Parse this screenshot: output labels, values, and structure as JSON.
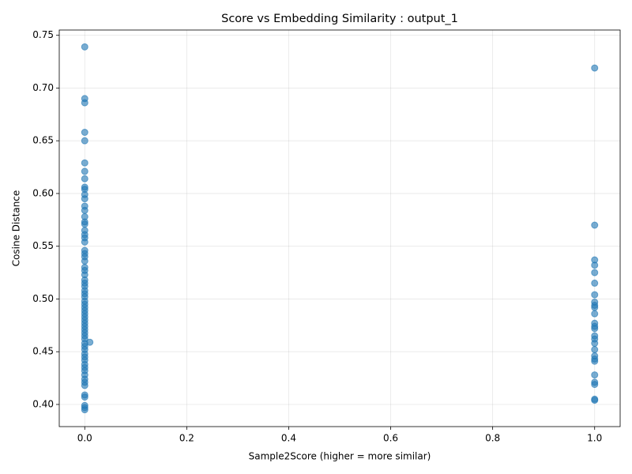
{
  "chart_data": {
    "type": "scatter",
    "title": "Score vs Embedding Similarity : output_1",
    "x_label": "Sample2Score (higher = more similar)",
    "y_label": "Cosine Distance",
    "color": "#1f77b4",
    "grid": true,
    "x": [
      0,
      0,
      0,
      0,
      0,
      0,
      0,
      0,
      0,
      0,
      0,
      0,
      0,
      0,
      0,
      0,
      0,
      0,
      0,
      0,
      0,
      0,
      0,
      0,
      0,
      0,
      0,
      0,
      0,
      0,
      0,
      0,
      0,
      0,
      0,
      0,
      0,
      0,
      0,
      0,
      0,
      0,
      0,
      0,
      0,
      0,
      0,
      0,
      0,
      0,
      0,
      0,
      0,
      0,
      0,
      0,
      0,
      0,
      0,
      0,
      0,
      0,
      0,
      0,
      0,
      0.01,
      1,
      1,
      1,
      1,
      1,
      1,
      1,
      1,
      1,
      1,
      1,
      1,
      1,
      1,
      1,
      1,
      1,
      1,
      1,
      1,
      1,
      1,
      1,
      1,
      1,
      1
    ],
    "values": [
      0.739,
      0.69,
      0.686,
      0.658,
      0.65,
      0.629,
      0.621,
      0.614,
      0.606,
      0.604,
      0.599,
      0.595,
      0.588,
      0.584,
      0.578,
      0.573,
      0.571,
      0.565,
      0.561,
      0.558,
      0.554,
      0.546,
      0.543,
      0.54,
      0.536,
      0.53,
      0.527,
      0.523,
      0.518,
      0.515,
      0.512,
      0.508,
      0.505,
      0.502,
      0.498,
      0.495,
      0.492,
      0.489,
      0.486,
      0.483,
      0.48,
      0.477,
      0.474,
      0.471,
      0.468,
      0.465,
      0.462,
      0.458,
      0.455,
      0.452,
      0.448,
      0.445,
      0.442,
      0.438,
      0.435,
      0.432,
      0.428,
      0.424,
      0.421,
      0.418,
      0.409,
      0.407,
      0.399,
      0.397,
      0.395,
      0.459,
      0.719,
      0.57,
      0.537,
      0.532,
      0.525,
      0.515,
      0.504,
      0.497,
      0.494,
      0.492,
      0.486,
      0.477,
      0.474,
      0.472,
      0.465,
      0.462,
      0.458,
      0.452,
      0.446,
      0.443,
      0.441,
      0.428,
      0.421,
      0.419,
      0.405,
      0.404
    ],
    "xlim": [
      -0.05,
      1.05
    ],
    "xticks": [
      {
        "value": 0,
        "label": "0.0"
      },
      0.2,
      0.4,
      0.6,
      0.8,
      {
        "value": 1,
        "label": "1.0"
      }
    ],
    "ylim": [
      0.379,
      0.755
    ],
    "yticks": [
      {
        "value": 0.4,
        "label": "0.40"
      },
      0.45,
      {
        "value": 0.5,
        "label": "0.50"
      },
      0.55,
      {
        "value": 0.6,
        "label": "0.60"
      },
      0.65,
      {
        "value": 0.7,
        "label": "0.70"
      },
      0.75
    ]
  }
}
